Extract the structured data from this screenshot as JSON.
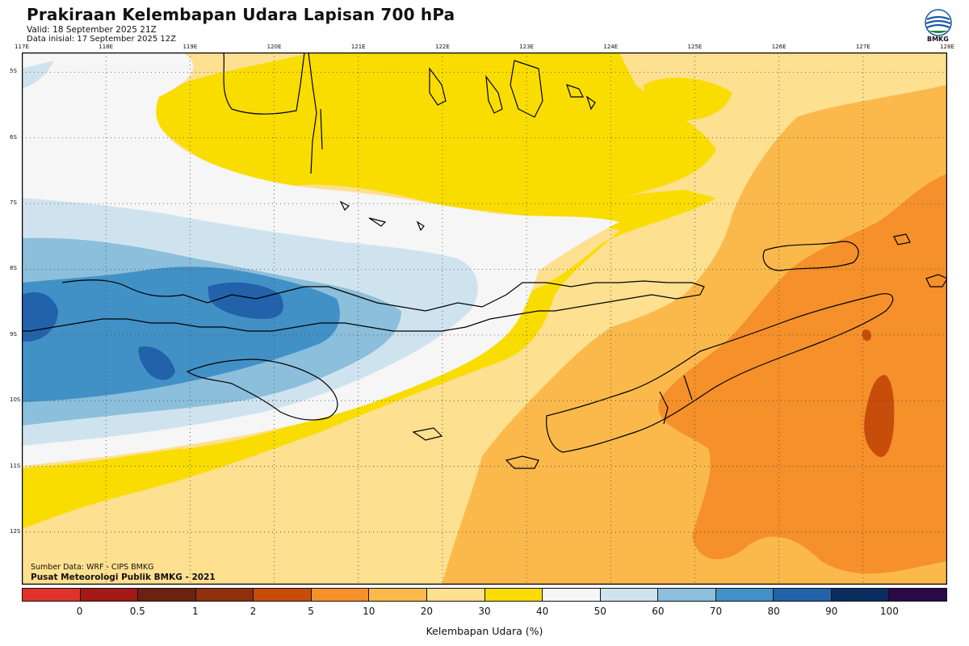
{
  "header": {
    "title": "Prakiraan Kelembapan Udara Lapisan 700 hPa",
    "valid": "Valid: 18 September 2025 21Z",
    "init": "Data inisial: 17 September 2025 12Z"
  },
  "logo": {
    "text": "BMKG",
    "icon": "bmkg-logo-icon"
  },
  "axes": {
    "lon_ticks": [
      "117E",
      "118E",
      "119E",
      "120E",
      "121E",
      "122E",
      "123E",
      "124E",
      "125E",
      "126E",
      "127E",
      "128E"
    ],
    "lat_ticks": [
      "5S",
      "6S",
      "7S",
      "8S",
      "9S",
      "10S",
      "11S",
      "12S"
    ]
  },
  "credits": {
    "line1": "Sumber Data: WRF - CIPS BMKG",
    "line2": "Pusat Meteorologi Publik BMKG - 2021"
  },
  "legend": {
    "colors": [
      "#e0332b",
      "#a31a17",
      "#6b2311",
      "#8f2f0c",
      "#c64d0a",
      "#f5902a",
      "#fbb94c",
      "#fde090",
      "#f9dd00",
      "#f6f6f6",
      "#cfe3ef",
      "#8cbfdb",
      "#4291c6",
      "#2262aa",
      "#0a2c5e",
      "#2a0a48"
    ],
    "labels": [
      "0",
      "0.5",
      "1",
      "2",
      "5",
      "10",
      "20",
      "30",
      "40",
      "50",
      "60",
      "70",
      "80",
      "90",
      "100"
    ],
    "unit": "Kelembapan Udara (%)"
  },
  "map": {
    "extent": {
      "lon": [
        117,
        128
      ],
      "lat": [
        -4.7,
        -12.8
      ]
    },
    "grid": true,
    "border_color": "#000000",
    "coast_color": "#000000"
  }
}
